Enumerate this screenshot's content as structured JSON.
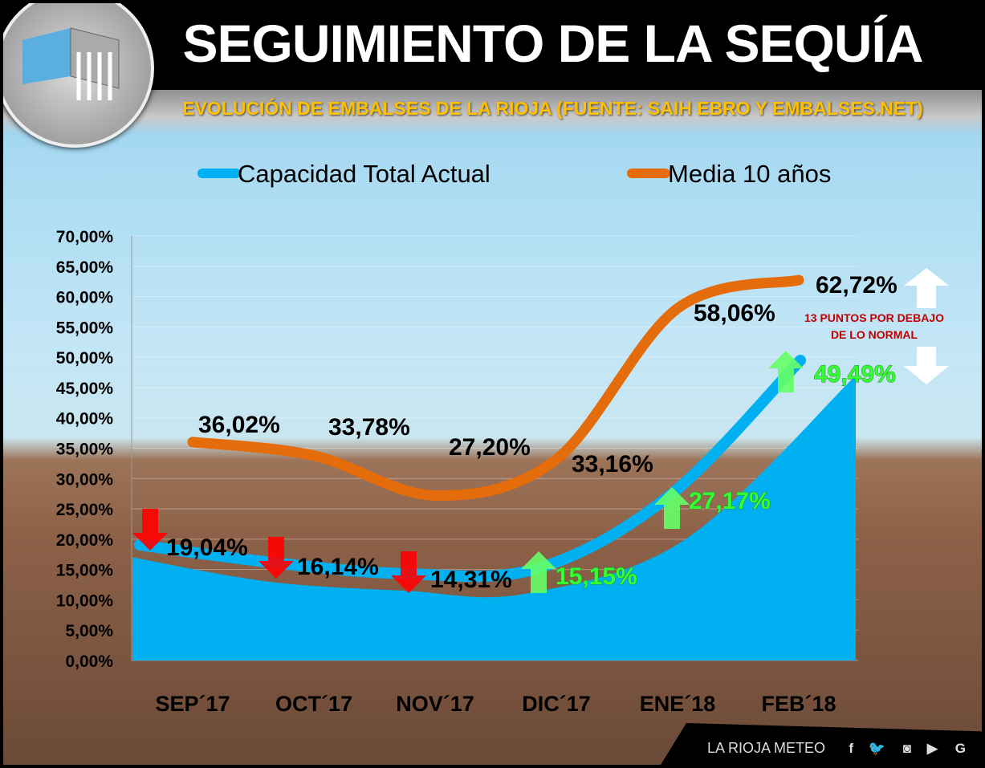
{
  "header": {
    "title": "SEGUIMIENTO DE LA SEQUÍA",
    "subtitle": "EVOLUCIÓN DE EMBALSES DE LA RIOJA (FUENTE: SAIH EBRO Y EMBALSES.NET)"
  },
  "annotation": {
    "text_line1": "13 PUNTOS POR DEBAJO",
    "text_line2": "DE LO NORMAL",
    "color": "#c00000"
  },
  "footer": {
    "brand": "LA RIOJA METEO",
    "social": [
      "facebook-icon",
      "twitter-icon",
      "instagram-icon",
      "youtube-icon",
      "google-icon"
    ]
  },
  "chart_data": {
    "type": "line",
    "title": "EVOLUCIÓN DE EMBALSES DE LA RIOJA (FUENTE: SAIH EBRO Y EMBALSES.NET)",
    "categories": [
      "SEP´17",
      "OCT´17",
      "NOV´17",
      "DIC´17",
      "ENE´18",
      "FEB´18"
    ],
    "ylim": [
      0,
      70
    ],
    "yticks": [
      "0,00%",
      "5,00%",
      "10,00%",
      "15,00%",
      "20,00%",
      "25,00%",
      "30,00%",
      "35,00%",
      "40,00%",
      "45,00%",
      "50,00%",
      "55,00%",
      "60,00%",
      "65,00%",
      "70,00%"
    ],
    "legend_position": "top",
    "series": [
      {
        "name": "Capacidad Total Actual",
        "color": "#00b0f0",
        "values": [
          19.04,
          16.14,
          14.31,
          15.15,
          27.17,
          49.49
        ],
        "labels": [
          "19,04%",
          "16,14%",
          "14,31%",
          "15,15%",
          "27,17%",
          "49,49%"
        ],
        "trend": [
          "down",
          "down",
          "down",
          "up",
          "up",
          "up"
        ]
      },
      {
        "name": "Media 10 años",
        "color": "#e46c0a",
        "values": [
          36.02,
          33.78,
          27.2,
          33.16,
          58.06,
          62.72
        ],
        "labels": [
          "36,02%",
          "33,78%",
          "27,20%",
          "33,16%",
          "58,06%",
          "62,72%"
        ]
      }
    ]
  }
}
